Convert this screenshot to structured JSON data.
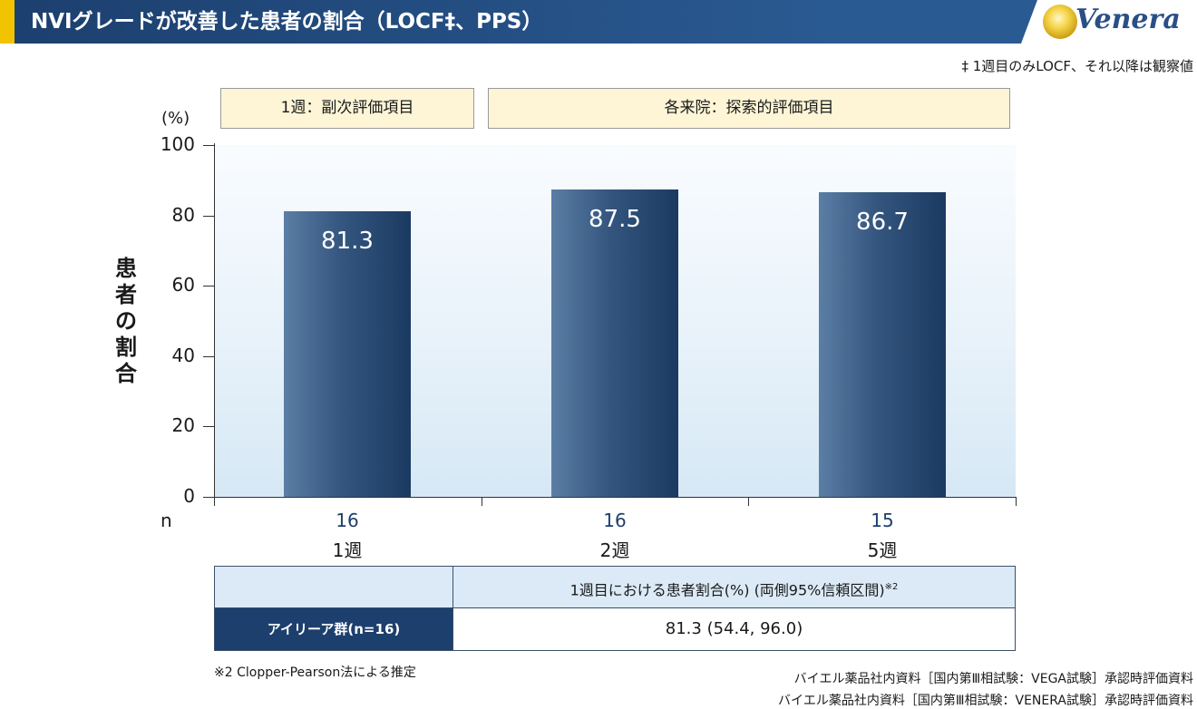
{
  "header": {
    "title": "NVIグレードが改善した患者の割合（LOCF‡、PPS）",
    "logo_text": "Venera",
    "accent_color": "#f2c300",
    "brand_color": "#1c3f6e"
  },
  "footnote_top": "‡ 1週目のみLOCF、それ以降は観察値",
  "category_boxes": [
    "1週：副次評価項目",
    "各来院：探索的評価項目"
  ],
  "chart_data": {
    "type": "bar",
    "categories": [
      "1週",
      "2週",
      "5週"
    ],
    "values": [
      81.3,
      87.5,
      86.7
    ],
    "data_labels": [
      "81.3",
      "87.5",
      "86.7"
    ],
    "n_label": "n",
    "n_values": [
      "16",
      "16",
      "15"
    ],
    "yunit": "(%)",
    "ylabel": "患者の割合",
    "xlabel": "",
    "ylim": [
      0,
      100
    ],
    "yticks": [
      "0",
      "20",
      "40",
      "60",
      "80",
      "100"
    ],
    "grid": false
  },
  "table": {
    "header_text": "1週目における患者割合(%) (両側95%信頼区間)",
    "header_sup": "※2",
    "row_label": "アイリーア群(n=16)",
    "row_value": "81.3 (54.4, 96.0)"
  },
  "footnote_bottom": "※2 Clopper-Pearson法による推定",
  "sources": [
    "バイエル薬品社内資料［国内第Ⅲ相試験：VEGA試験］承認時評価資料",
    "バイエル薬品社内資料［国内第Ⅲ相試験：VENERA試験］承認時評価資料"
  ]
}
